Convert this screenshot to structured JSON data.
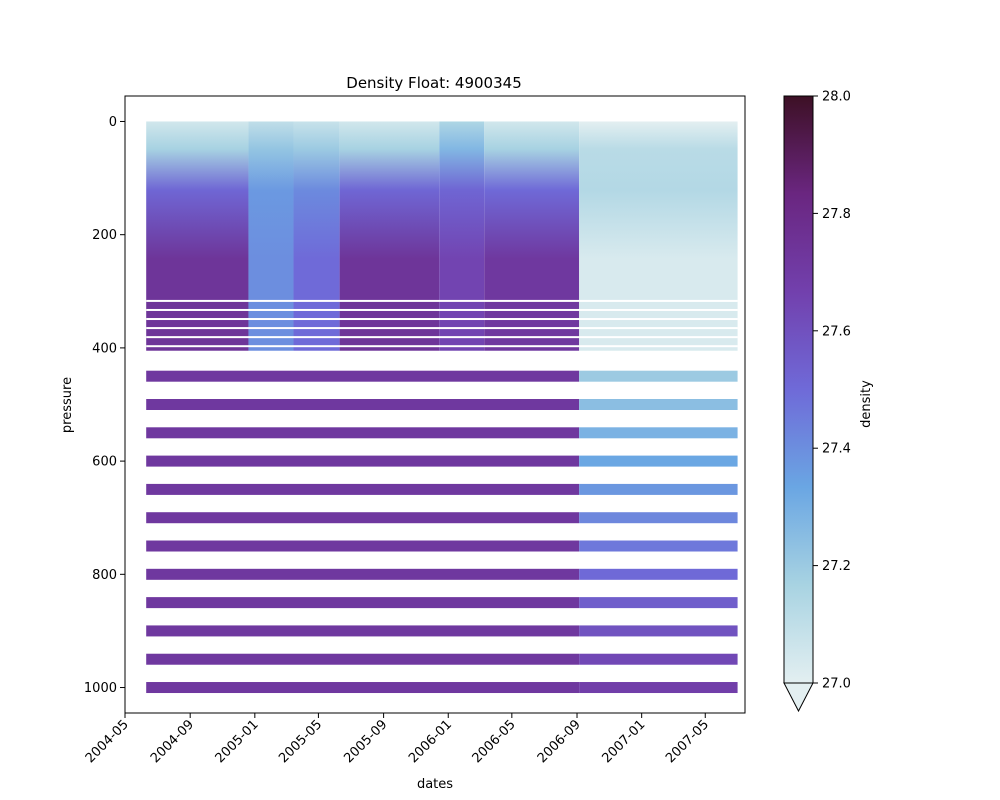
{
  "chart_data": {
    "type": "heatmap",
    "title": "Density Float: 4900345",
    "xlabel": "dates",
    "ylabel": "pressure",
    "colorbar_label": "density",
    "x_ticks": [
      "2004-05",
      "2004-09",
      "2005-01",
      "2005-05",
      "2005-09",
      "2006-01",
      "2006-05",
      "2006-09",
      "2007-01",
      "2007-05"
    ],
    "x_range": [
      "2004-05-01",
      "2007-07-15"
    ],
    "y_ticks": [
      0,
      200,
      400,
      600,
      800,
      1000
    ],
    "y_range": [
      1045,
      -45
    ],
    "y_inverted": true,
    "colorbar_ticks": [
      27.0,
      27.2,
      27.4,
      27.6,
      27.8,
      28.0
    ],
    "colorbar_range": [
      27.0,
      28.0
    ],
    "colorbar_extend": "min",
    "colormap": [
      "#e3eff1",
      "#a8d3e2",
      "#6aa6e3",
      "#6f6ad8",
      "#7240ad",
      "#6a2680",
      "#3d1025"
    ],
    "profile_dates": [
      "2004-06-10",
      "2007-07-01"
    ],
    "upper_pressure_range": [
      0,
      405
    ],
    "deep_levels": [
      450,
      500,
      550,
      600,
      650,
      700,
      750,
      800,
      850,
      900,
      950,
      1000
    ],
    "upper_segments": [
      {
        "from": "2004-06-10",
        "to": "2004-12-20",
        "surface_density": 27.05,
        "deep_density": 27.74
      },
      {
        "from": "2004-12-20",
        "to": "2005-03-15",
        "surface_density": 27.1,
        "deep_density": 27.4
      },
      {
        "from": "2005-03-15",
        "to": "2005-06-10",
        "surface_density": 27.08,
        "deep_density": 27.5
      },
      {
        "from": "2005-06-10",
        "to": "2005-12-15",
        "surface_density": 27.05,
        "deep_density": 27.74
      },
      {
        "from": "2005-12-15",
        "to": "2006-03-10",
        "surface_density": 27.15,
        "deep_density": 27.65
      },
      {
        "from": "2006-03-10",
        "to": "2006-09-05",
        "surface_density": 27.05,
        "deep_density": 27.72
      },
      {
        "from": "2006-09-05",
        "to": "2007-07-01",
        "surface_density": 27.0,
        "deep_density": 27.03
      }
    ],
    "deep_level_density": {
      "before_2006_09": 27.72,
      "after_2006_09_at_450": 27.2,
      "after_2006_09_at_1000": 27.68
    }
  }
}
